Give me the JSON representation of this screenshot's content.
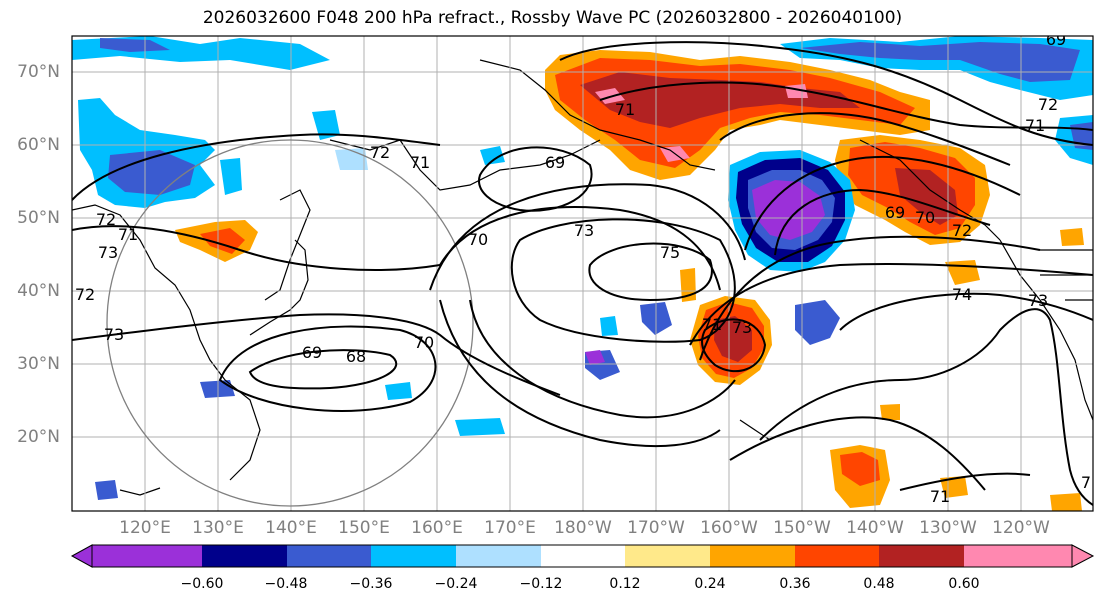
{
  "title": "2026032600 F048 200 hPa refract., Rossby Wave PC (2026032800 - 2026040100)",
  "lat_labels": [
    "70°N",
    "60°N",
    "50°N",
    "40°N",
    "30°N",
    "20°N"
  ],
  "lon_labels": [
    "120°E",
    "130°E",
    "140°E",
    "150°E",
    "160°E",
    "170°E",
    "180°W",
    "170°W",
    "160°W",
    "150°W",
    "140°W",
    "130°W",
    "120°W"
  ],
  "colorbar": {
    "ticks": [
      "−0.60",
      "−0.48",
      "−0.36",
      "−0.24",
      "−0.12",
      "0.12",
      "0.24",
      "0.36",
      "0.48",
      "0.60"
    ],
    "colors": [
      "#9b30d9",
      "#00008b",
      "#3a5bd0",
      "#00bfff",
      "#aee0ff",
      "#ffffff",
      "#ffe98a",
      "#ffa500",
      "#ff4500",
      "#b22222",
      "#ff88b0"
    ]
  },
  "contour_labels": [
    "72",
    "71",
    "73",
    "72",
    "69",
    "70",
    "73",
    "75",
    "69",
    "68",
    "70",
    "71",
    "71",
    "71",
    "72",
    "73",
    "72",
    "69",
    "70",
    "72",
    "74",
    "73",
    "71",
    "7",
    "71",
    "69"
  ],
  "colors": {
    "contour": "#000000",
    "grid": "#b0b0b0",
    "axis_label": "#808080",
    "circle": "#808080"
  }
}
